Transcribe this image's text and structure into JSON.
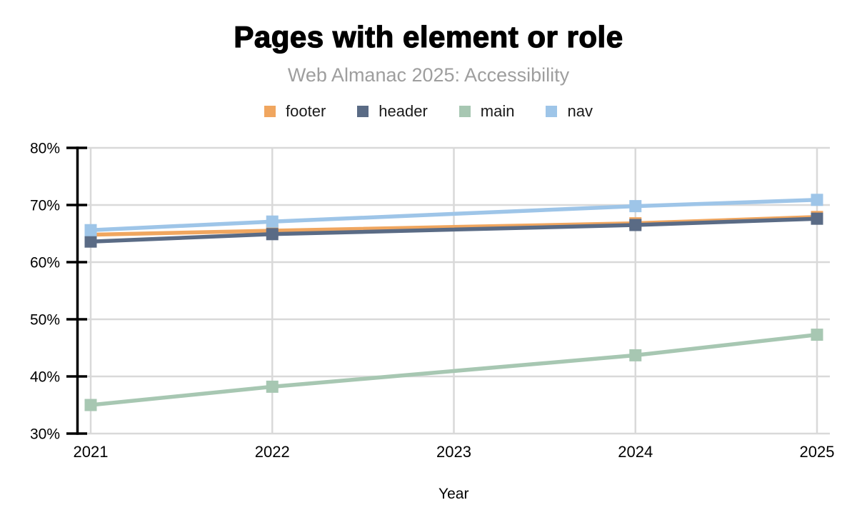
{
  "header": {
    "title": "Pages with element or role",
    "subtitle": "Web Almanac 2025: Accessibility"
  },
  "chart_data": {
    "type": "line",
    "title": "Pages with element or role",
    "subtitle": "Web Almanac 2025: Accessibility",
    "xlabel": "Year",
    "ylabel": "",
    "x_ticks": [
      2021,
      2022,
      2023,
      2024,
      2025
    ],
    "y_ticks": [
      80,
      70,
      60,
      50,
      40,
      30
    ],
    "y_tick_suffix": "%",
    "ylim": [
      30,
      80
    ],
    "grid": true,
    "legend_position": "top",
    "marker": "square",
    "note": "no data point at 2023; lines connect 2022 directly to 2024",
    "series": [
      {
        "name": "footer",
        "color": "#F0A65F",
        "x": [
          2021,
          2022,
          2024,
          2025
        ],
        "values": [
          64.8,
          65.5,
          66.8,
          67.9
        ]
      },
      {
        "name": "header",
        "color": "#5A6B85",
        "x": [
          2021,
          2022,
          2024,
          2025
        ],
        "values": [
          63.6,
          64.9,
          66.5,
          67.6
        ]
      },
      {
        "name": "main",
        "color": "#A7C7B2",
        "x": [
          2021,
          2022,
          2024,
          2025
        ],
        "values": [
          35.0,
          38.2,
          43.7,
          47.3
        ]
      },
      {
        "name": "nav",
        "color": "#9EC5E8",
        "x": [
          2021,
          2022,
          2024,
          2025
        ],
        "values": [
          65.6,
          67.1,
          69.8,
          70.9
        ]
      }
    ],
    "colors": {
      "grid": "#d9d9d9",
      "axis": "#000000",
      "tick_labels": "#000000",
      "subtitle": "#9e9e9e",
      "background": "#ffffff"
    }
  }
}
